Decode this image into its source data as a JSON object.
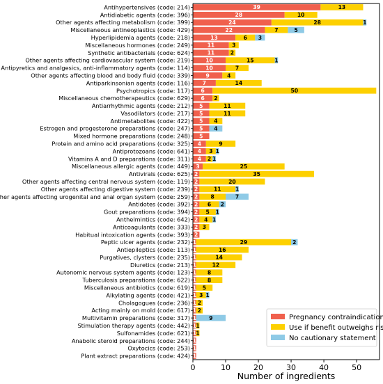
{
  "chart_data": {
    "type": "bar",
    "orientation": "horizontal",
    "stacked": true,
    "xlabel": "Number of ingredients",
    "xlim": [
      0,
      57
    ],
    "xticks": [
      0,
      10,
      20,
      30,
      40,
      50
    ],
    "grid": false,
    "legend_position": "bottom-right",
    "categories": [
      "Antihypertensives (code: 214)",
      "Antidiabetic agents (code: 396)",
      "Other agents affecting metabolism (code: 399)",
      "Miscellaneous antineoplastics (code: 429)",
      "Hyperlipidemia agents (code: 218)",
      "Miscellaneous hormones (code: 249)",
      "Synthetic antibacterials (code: 624)",
      "Other agents affecting cardiovascular system (code: 219)",
      "Antipyretics and analgesics, anti-inflammatory agents (code: 114)",
      "Other agents affecting blood and body fluid (code: 339)",
      "Antiparkinsonian agents (code: 116)",
      "Psychotropics (code: 117)",
      "Miscellaneous chemotherapeutics (code: 629)",
      "Antiarrhythmic agents (code: 212)",
      "Vasodilators (code: 217)",
      "Antimetabolites (code: 422)",
      "Estrogen and progesterone preparations (code: 247)",
      "Mixed hormone preparations (code: 248)",
      "Protein and amino acid preparations (code: 325)",
      "Antiprotozoans (code: 641)",
      "Vitamins A and D preparations (code: 311)",
      "Miscellaneous allergic agents (code: 449)",
      "Antivirals (code: 625)",
      "Other agents affecting central nervous system (code: 119)",
      "Other agents affecting digestive system (code: 239)",
      "Other agents affecting urogenital and anal organ system (code: 259)",
      "Antidotes (code: 392)",
      "Gout preparations (code: 394)",
      "Anthelmintics (code: 642)",
      "Anticoagulants (code: 333)",
      "Habitual intoxication agents (code: 393)",
      "Peptic ulcer agents (code: 232)",
      "Antiepileptics (code: 113)",
      "Purgatives, clysters (code: 235)",
      "Diuretics (code: 213)",
      "Autonomic nervous system agents (code: 123)",
      "Tuberculosis preparations (code: 622)",
      "Miscellaneous antibiotics (code: 619)",
      "Alkylating agents (code: 421)",
      "Cholagogues (code: 236)",
      "Acting mainly on mold (code: 617)",
      "Multivitamin preparations (code: 317)",
      "Stimulation therapy agents (code: 442)",
      "Sulfonamides (code: 621)",
      "Anabolic steroid preparations (code: 244)",
      "Oxytocics (code: 253)",
      "Plant extract preparations (code: 424)"
    ],
    "series": [
      {
        "name": "Pregnancy contraindications",
        "color": "#f0604d",
        "label_color": "#ffffff",
        "values": [
          39,
          28,
          24,
          22,
          13,
          11,
          11,
          10,
          10,
          9,
          7,
          6,
          6,
          5,
          5,
          5,
          5,
          5,
          4,
          4,
          4,
          3,
          2,
          2,
          2,
          2,
          2,
          2,
          2,
          2,
          2,
          1,
          1,
          1,
          1,
          1,
          1,
          1,
          1,
          1,
          1,
          1,
          1,
          1,
          1,
          1,
          1
        ]
      },
      {
        "name": "Use if benefit outweighs risk",
        "color": "#fdd000",
        "label_color": "#000000",
        "values": [
          13,
          10,
          28,
          7,
          6,
          3,
          2,
          15,
          7,
          4,
          14,
          50,
          2,
          11,
          11,
          4,
          0,
          0,
          9,
          3,
          2,
          25,
          35,
          20,
          11,
          8,
          6,
          5,
          4,
          3,
          0,
          29,
          16,
          14,
          12,
          8,
          8,
          5,
          3,
          2,
          2,
          0,
          1,
          1,
          0,
          0,
          0
        ]
      },
      {
        "name": "No cautionary statement",
        "color": "#8ecae6",
        "label_color": "#000000",
        "values": [
          0,
          0,
          1,
          5,
          3,
          0,
          0,
          1,
          0,
          0,
          0,
          0,
          0,
          0,
          0,
          0,
          4,
          0,
          0,
          1,
          1,
          0,
          0,
          0,
          1,
          7,
          2,
          1,
          1,
          0,
          0,
          2,
          0,
          0,
          0,
          0,
          0,
          0,
          1,
          0,
          0,
          9,
          0,
          0,
          0,
          0,
          0
        ]
      }
    ]
  }
}
